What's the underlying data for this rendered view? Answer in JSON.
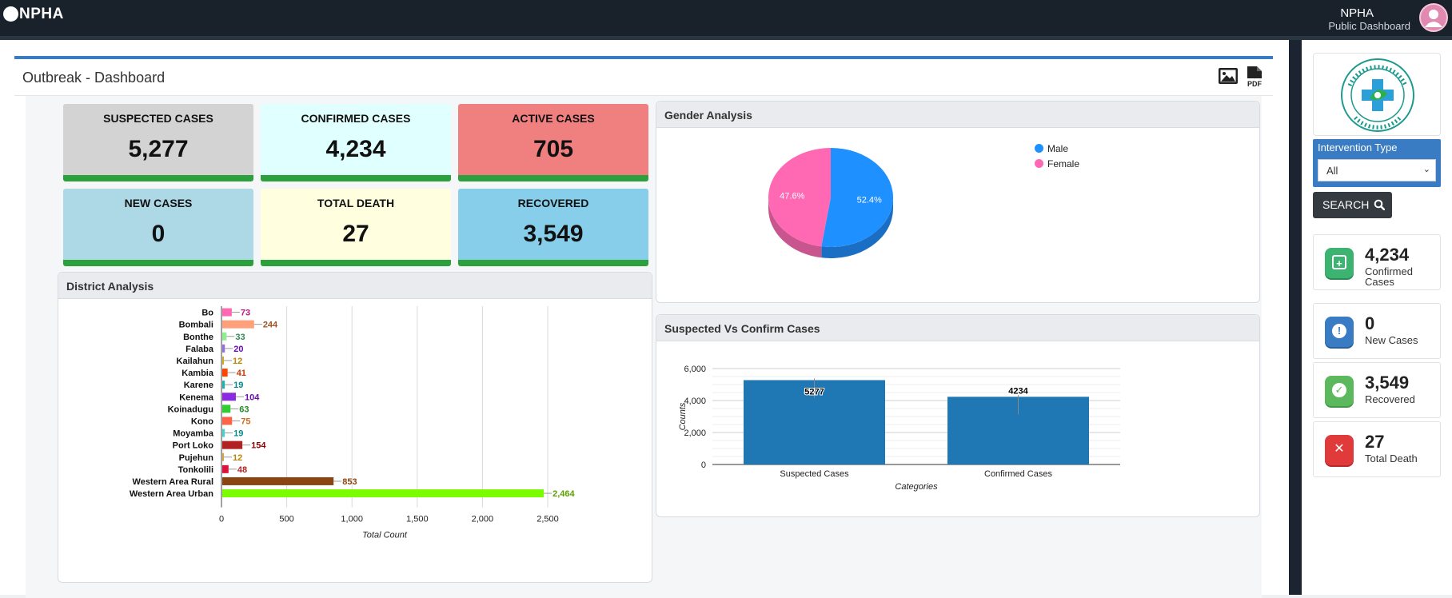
{
  "header": {
    "brand": "NPHA",
    "user_name": "NPHA",
    "user_role": "Public Dashboard"
  },
  "dashboard": {
    "title": "Outbreak - Dashboard",
    "tools": [
      "image-export-icon",
      "pdf-export-icon"
    ]
  },
  "stats": [
    {
      "label": "SUSPECTED CASES",
      "value": "5,277",
      "color": "#d3d3d3"
    },
    {
      "label": "CONFIRMED CASES",
      "value": "4,234",
      "color": "#e0ffff"
    },
    {
      "label": "ACTIVE CASES",
      "value": "705",
      "color": "#f08080"
    },
    {
      "label": "NEW CASES",
      "value": "0",
      "color": "#add8e6"
    },
    {
      "label": "TOTAL DEATH",
      "value": "27",
      "color": "#ffffe0"
    },
    {
      "label": "RECOVERED",
      "value": "3,549",
      "color": "#87ceeb"
    }
  ],
  "district_panel": {
    "title": "District Analysis"
  },
  "gender_panel": {
    "title": "Gender Analysis"
  },
  "compare_panel": {
    "title": "Suspected Vs Confirm Cases"
  },
  "chart_data": [
    {
      "type": "bar",
      "orientation": "horizontal",
      "categories": [
        "Bo",
        "Bombali",
        "Bonthe",
        "Falaba",
        "Kailahun",
        "Kambia",
        "Karene",
        "Kenema",
        "Koinadugu",
        "Kono",
        "Moyamba",
        "Port Loko",
        "Pujehun",
        "Tonkolili",
        "Western Area Rural",
        "Western Area Urban"
      ],
      "values": [
        73,
        244,
        33,
        20,
        12,
        41,
        19,
        104,
        63,
        75,
        19,
        154,
        12,
        48,
        853,
        2464
      ],
      "data_labels": [
        "73",
        "244",
        "33",
        "20",
        "12",
        "41",
        "19",
        "104",
        "63",
        "75",
        "19",
        "154",
        "12",
        "48",
        "853",
        "2,464"
      ],
      "colors": [
        "#ff69b4",
        "#ffa07a",
        "#90ee90",
        "#9370db",
        "#daa520",
        "#ff4500",
        "#20b2aa",
        "#8a2be2",
        "#32cd32",
        "#ff6347",
        "#48d1cc",
        "#b22222",
        "#d2a93f",
        "#dc143c",
        "#8b4513",
        "#7cfc00"
      ],
      "label_colors": [
        "#c71585",
        "#a0522d",
        "#2e8b57",
        "#6a0dad",
        "#b8860b",
        "#cc3700",
        "#008b8b",
        "#6a0dad",
        "#228b22",
        "#d2691e",
        "#008b8b",
        "#8b0000",
        "#b8860b",
        "#b22222",
        "#8b4513",
        "#5aa000"
      ],
      "xlabel": "Total Count",
      "xlim": [
        0,
        2500
      ],
      "xticks": [
        "0",
        "500",
        "1,000",
        "1,500",
        "2,000",
        "2,500"
      ],
      "grid": true
    },
    {
      "type": "pie",
      "categories": [
        "Male",
        "Female"
      ],
      "values": [
        52.4,
        47.6
      ],
      "data_labels": [
        "52.4%",
        "47.6%"
      ],
      "colors": [
        "#1e90ff",
        "#ff69b4"
      ],
      "legend": "top-right"
    },
    {
      "type": "bar",
      "categories": [
        "Suspected Cases",
        "Confirmed Cases"
      ],
      "values": [
        5277,
        4234
      ],
      "data_labels": [
        "5277",
        "4234"
      ],
      "color": "#1f77b4",
      "xlabel": "Categories",
      "ylabel": "Counts",
      "ylim": [
        0,
        6000
      ],
      "yticks": [
        "0",
        "2,000",
        "4,000",
        "6,000"
      ],
      "grid": true
    }
  ],
  "sidebar": {
    "intervention_label": "Intervention Type",
    "intervention_value": "All",
    "search_label": "SEARCH",
    "cards": [
      {
        "value": "4,234",
        "label": "Confirmed Cases",
        "color": "#3cb371",
        "icon": "plus-icon"
      },
      {
        "value": "0",
        "label": "New Cases",
        "color": "#3a7cc3",
        "icon": "alert-icon"
      },
      {
        "value": "3,549",
        "label": "Recovered",
        "color": "#5cb85c",
        "icon": "check-icon"
      },
      {
        "value": "27",
        "label": "Total Death",
        "color": "#e03a3a",
        "icon": "close-icon"
      }
    ]
  }
}
